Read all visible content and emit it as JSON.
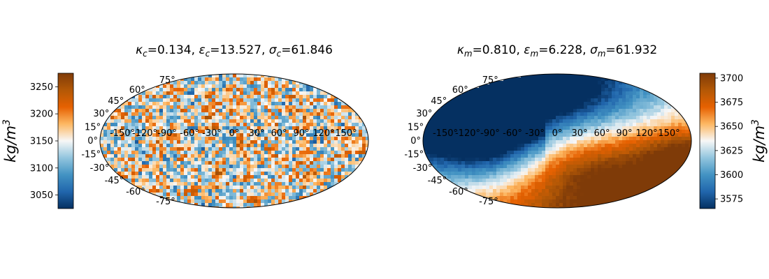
{
  "colors": {
    "cmap_low": "#053061",
    "cmap_mid": "#f7f7f7",
    "cmap_high": "#67001f",
    "cmap_stops": [
      "#053061",
      "#2166ac",
      "#4393c3",
      "#92c5de",
      "#f7f7f7",
      "#fdb863",
      "#e66101",
      "#b35806",
      "#7f3b08"
    ],
    "outline": "#000000"
  },
  "chart_data": [
    {
      "type": "heatmap",
      "projection": "mollweide",
      "title_parts": [
        {
          "sym": "κ",
          "sub": "c",
          "eq": "=0.134, "
        },
        {
          "sym": "ε",
          "sub": "c",
          "eq": "=13.527, "
        },
        {
          "sym": "σ",
          "sub": "c",
          "eq": "=61.846"
        }
      ],
      "lon_ticks": [
        "-150°",
        "-120°",
        "-90°",
        "-60°",
        "-30°",
        "0°",
        "30°",
        "60°",
        "90°",
        "120°",
        "150°"
      ],
      "lat_ticks": [
        "75°",
        "60°",
        "45°",
        "30°",
        "15°",
        "0°",
        "-15°",
        "-30°",
        "-45°",
        "-60°",
        "-75°"
      ],
      "colorbar": {
        "side": "left",
        "range": [
          3025,
          3275
        ],
        "ticks": [
          3050,
          3100,
          3150,
          3200,
          3250
        ],
        "label_base": "kg/m",
        "label_exp": "3"
      },
      "pattern": "small-scale random fluctuations"
    },
    {
      "type": "heatmap",
      "projection": "mollweide",
      "title_parts": [
        {
          "sym": "κ",
          "sub": "m",
          "eq": "=0.810, "
        },
        {
          "sym": "ε",
          "sub": "m",
          "eq": "=6.228, "
        },
        {
          "sym": "σ",
          "sub": "m",
          "eq": "=61.932"
        }
      ],
      "lon_ticks": [
        "-150°",
        "-120°",
        "-90°",
        "-60°",
        "-30°",
        "0°",
        "30°",
        "60°",
        "90°",
        "120°",
        "150°"
      ],
      "lat_ticks": [
        "75°",
        "60°",
        "45°",
        "30°",
        "15°",
        "0°",
        "-15°",
        "-30°",
        "-45°",
        "-60°",
        "-75°"
      ],
      "colorbar": {
        "side": "right",
        "range": [
          3565,
          3705
        ],
        "ticks": [
          3575,
          3600,
          3625,
          3650,
          3675,
          3700
        ],
        "label_base": "kg/m",
        "label_exp": "3"
      },
      "pattern": "large-scale: dense (red) southern hemisphere, light (blue) northern and western regions"
    }
  ]
}
